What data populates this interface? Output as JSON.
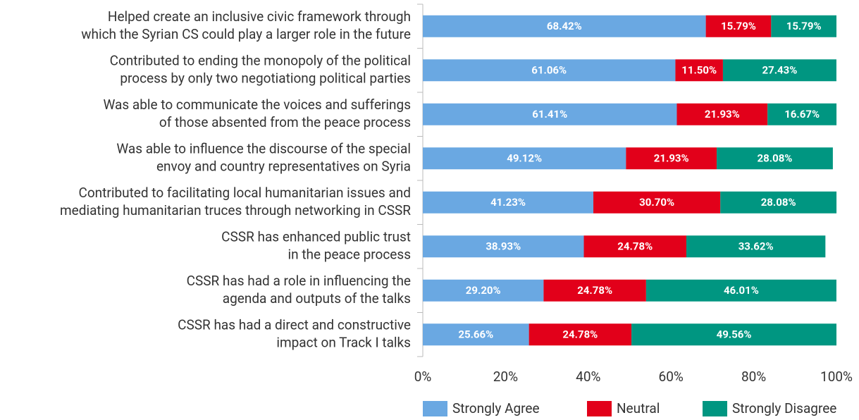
{
  "chart_data": {
    "type": "stacked_barh",
    "categories": [
      [
        "Helped create an inclusive civic framework through",
        "which the Syrian CS could play a larger role in the future"
      ],
      [
        "Contributed to ending the monopoly of the political",
        "process by only two negotiationg political parties"
      ],
      [
        "Was able to communicate the voices and sufferings",
        "of those absented from the peace process"
      ],
      [
        "Was able to influence the discourse of the special",
        "envoy and country representatives on Syria"
      ],
      [
        "Contributed to facilitating local humanitarian issues and",
        "mediating humanitarian truces through networking in CSSR"
      ],
      [
        "CSSR has enhanced public trust",
        "in the peace process"
      ],
      [
        "CSSR has had a role in influencing the",
        "agenda and outputs of the talks"
      ],
      [
        "CSSR has had a direct and constructive",
        "impact on Track I talks"
      ]
    ],
    "series": [
      {
        "name": "Strongly Agree",
        "color": "#6aa8e2",
        "values": [
          68.42,
          61.06,
          61.41,
          49.12,
          41.23,
          38.93,
          29.2,
          25.66
        ],
        "value_labels": [
          "68.42%",
          "61.06%",
          "61.41%",
          "49.12%",
          "41.23%",
          "38.93%",
          "29.20%",
          "25.66%"
        ]
      },
      {
        "name": "Neutral",
        "color": "#e2001a",
        "values": [
          15.79,
          11.5,
          21.93,
          21.93,
          30.7,
          24.78,
          24.78,
          24.78
        ],
        "value_labels": [
          "15.79%",
          "11.50%",
          "21.93%",
          "21.93%",
          "30.70%",
          "24.78%",
          "24.78%",
          "24.78%"
        ]
      },
      {
        "name": "Strongly Disagree",
        "color": "#009681",
        "values": [
          15.79,
          27.43,
          16.67,
          28.08,
          28.08,
          33.62,
          46.01,
          49.56
        ],
        "value_labels": [
          "15.79%",
          "27.43%",
          "16.67%",
          "28.08%",
          "28.08%",
          "33.62%",
          "46.01%",
          "49.56%"
        ]
      }
    ],
    "xlim": [
      0,
      100
    ],
    "xticks": [
      {
        "value": 0,
        "label": "0%"
      },
      {
        "value": 20,
        "label": "20%"
      },
      {
        "value": 40,
        "label": "40%"
      },
      {
        "value": 60,
        "label": "60%"
      },
      {
        "value": 80,
        "label": "80%"
      },
      {
        "value": 100,
        "label": "100%"
      }
    ],
    "legend": "bottom"
  }
}
